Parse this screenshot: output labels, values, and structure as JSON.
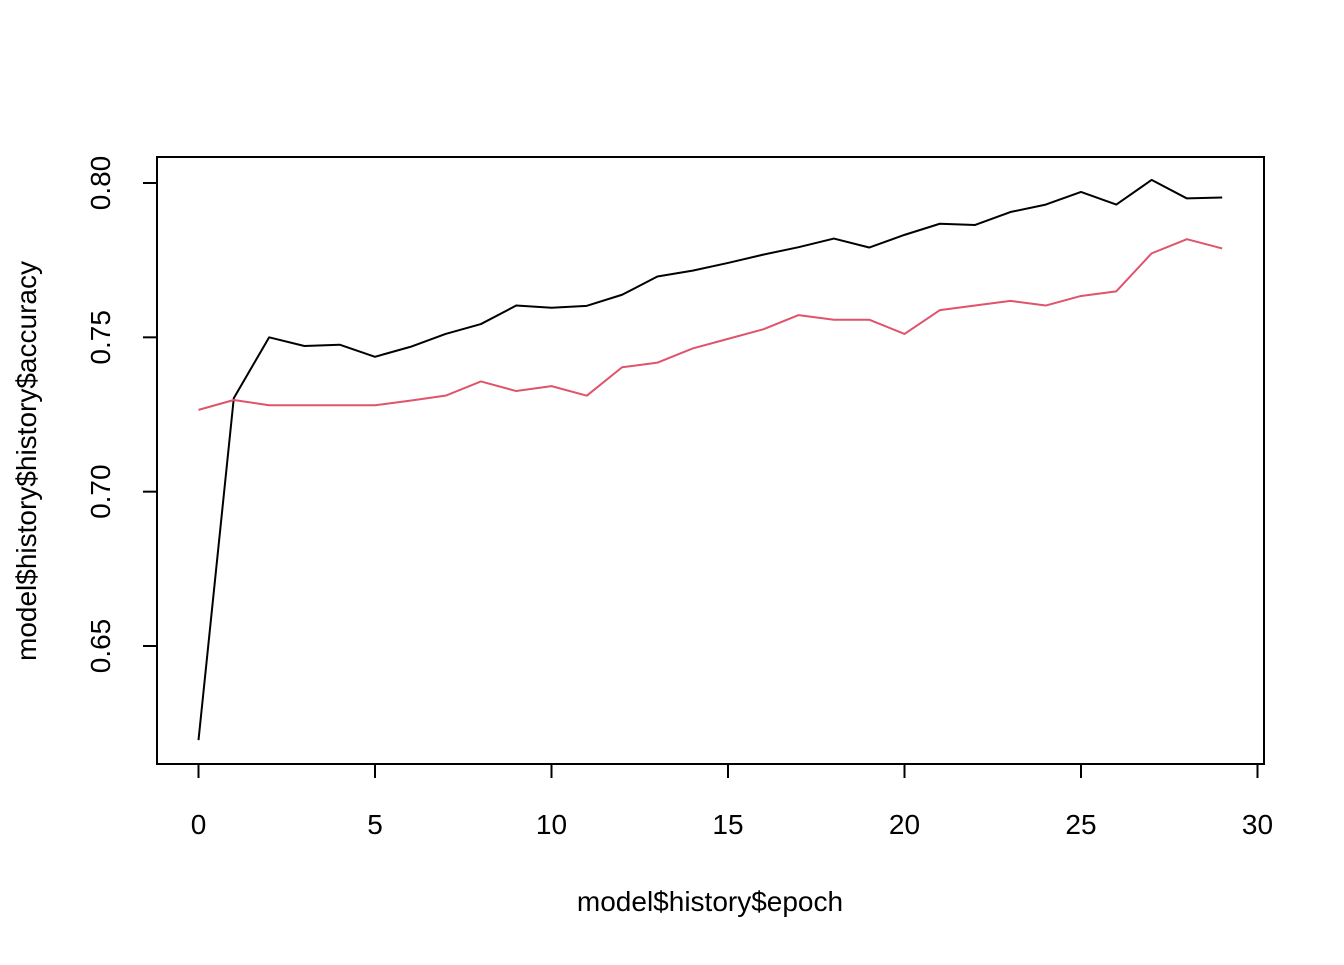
{
  "chart_data": {
    "type": "line",
    "xlabel": "model$history$epoch",
    "ylabel": "model$history$history$accuracy",
    "xlim": [
      0,
      30
    ],
    "ylim": [
      0.62,
      0.802
    ],
    "x_ticks": [
      0,
      5,
      10,
      15,
      20,
      25,
      30
    ],
    "x_tick_labels": [
      "0",
      "5",
      "10",
      "15",
      "20",
      "25",
      "30"
    ],
    "y_ticks": [
      0.65,
      0.7,
      0.75,
      0.8
    ],
    "y_tick_labels": [
      "0.65",
      "0.70",
      "0.75",
      "0.80"
    ],
    "grid": false,
    "x": [
      0,
      1,
      2,
      3,
      4,
      5,
      6,
      7,
      8,
      9,
      10,
      11,
      12,
      13,
      14,
      15,
      16,
      17,
      18,
      19,
      20,
      21,
      22,
      23,
      24,
      25,
      26,
      27,
      28,
      29
    ],
    "series": [
      {
        "color": "#000000",
        "values": [
          0.6195,
          0.7303,
          0.75,
          0.7472,
          0.7476,
          0.7437,
          0.7469,
          0.7511,
          0.7543,
          0.7603,
          0.7596,
          0.7602,
          0.7638,
          0.7697,
          0.7716,
          0.7741,
          0.7768,
          0.7792,
          0.782,
          0.7791,
          0.7832,
          0.7868,
          0.7864,
          0.7906,
          0.793,
          0.7971,
          0.793,
          0.801,
          0.795,
          0.7953
        ]
      },
      {
        "color": "#DF536B",
        "values": [
          0.7265,
          0.7297,
          0.728,
          0.728,
          0.728,
          0.728,
          0.7295,
          0.7311,
          0.7357,
          0.7326,
          0.7342,
          0.7311,
          0.7403,
          0.7418,
          0.7464,
          0.7495,
          0.7526,
          0.7572,
          0.7557,
          0.7557,
          0.7511,
          0.7588,
          0.7603,
          0.7618,
          0.7603,
          0.7634,
          0.7649,
          0.7772,
          0.7818,
          0.7788
        ]
      }
    ]
  }
}
